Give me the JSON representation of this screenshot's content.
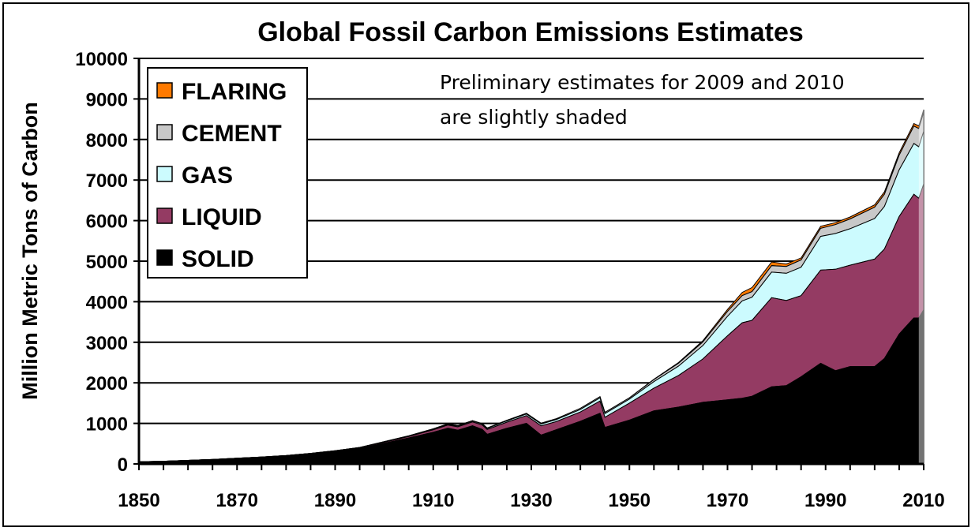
{
  "chart_data": {
    "type": "area",
    "title": "Global Fossil Carbon Emissions Estimates",
    "ylabel": "Million Metric Tons of Carbon",
    "xlabel": "",
    "xlim": [
      1850,
      2010
    ],
    "ylim": [
      0,
      10000
    ],
    "x_ticks": [
      "1850",
      "1870",
      "1890",
      "1910",
      "1930",
      "1950",
      "1970",
      "1990",
      "2010"
    ],
    "y_ticks": [
      "0",
      "1000",
      "2000",
      "3000",
      "4000",
      "5000",
      "6000",
      "7000",
      "8000",
      "9000",
      "10000"
    ],
    "grid": "horizontal",
    "legend_position": "top-left",
    "legend": [
      "FLARING",
      "CEMENT",
      "GAS",
      "LIQUID",
      "SOLID"
    ],
    "annotation_line1": "Preliminary estimates for 2009 and 2010",
    "annotation_line2": "are slightly shaded",
    "x": [
      1850,
      1855,
      1860,
      1865,
      1870,
      1875,
      1880,
      1885,
      1890,
      1895,
      1900,
      1905,
      1910,
      1913,
      1915,
      1918,
      1920,
      1921,
      1925,
      1929,
      1932,
      1935,
      1940,
      1944,
      1945,
      1950,
      1955,
      1960,
      1965,
      1970,
      1973,
      1975,
      1979,
      1982,
      1985,
      1989,
      1992,
      1995,
      2000,
      2002,
      2005,
      2008,
      2009,
      2010
    ],
    "series": [
      {
        "name": "SOLID",
        "color": "#000000",
        "values": [
          54,
          67,
          88,
          108,
          138,
          166,
          202,
          250,
          308,
          380,
          510,
          640,
          780,
          880,
          830,
          940,
          850,
          730,
          880,
          1000,
          710,
          840,
          1050,
          1250,
          900,
          1080,
          1310,
          1400,
          1520,
          1580,
          1620,
          1670,
          1900,
          1930,
          2150,
          2480,
          2300,
          2400,
          2400,
          2600,
          3200,
          3600,
          3600,
          3800
        ]
      },
      {
        "name": "LIQUID",
        "color": "#943b63",
        "values": [
          0,
          0,
          0,
          1,
          2,
          3,
          5,
          8,
          12,
          18,
          25,
          35,
          60,
          80,
          85,
          95,
          110,
          120,
          150,
          190,
          230,
          200,
          230,
          300,
          250,
          420,
          560,
          780,
          1070,
          1580,
          1860,
          1870,
          2200,
          2100,
          2000,
          2300,
          2500,
          2500,
          2650,
          2700,
          2900,
          3050,
          2950,
          3100
        ]
      },
      {
        "name": "GAS",
        "color": "#ccfbfe",
        "values": [
          0,
          0,
          0,
          0,
          0,
          0,
          0,
          2,
          5,
          8,
          10,
          12,
          15,
          18,
          20,
          22,
          25,
          25,
          30,
          40,
          45,
          50,
          60,
          80,
          90,
          100,
          160,
          230,
          330,
          480,
          540,
          570,
          630,
          670,
          700,
          830,
          880,
          900,
          1000,
          1050,
          1150,
          1250,
          1270,
          1300
        ]
      },
      {
        "name": "CEMENT",
        "color": "#c8c8c8",
        "values": [
          0,
          0,
          0,
          0,
          0,
          0,
          0,
          0,
          0,
          0,
          5,
          5,
          10,
          12,
          12,
          12,
          10,
          10,
          15,
          20,
          18,
          20,
          30,
          30,
          30,
          30,
          50,
          70,
          90,
          120,
          130,
          140,
          160,
          170,
          180,
          200,
          220,
          240,
          280,
          300,
          360,
          430,
          450,
          470
        ]
      },
      {
        "name": "FLARING",
        "color": "#ff7a00",
        "values": [
          0,
          0,
          0,
          0,
          0,
          0,
          0,
          0,
          0,
          0,
          0,
          0,
          0,
          0,
          0,
          0,
          0,
          0,
          0,
          0,
          0,
          0,
          0,
          0,
          0,
          0,
          10,
          20,
          30,
          50,
          80,
          100,
          90,
          60,
          50,
          50,
          50,
          50,
          60,
          60,
          60,
          65,
          65,
          65
        ]
      }
    ]
  }
}
